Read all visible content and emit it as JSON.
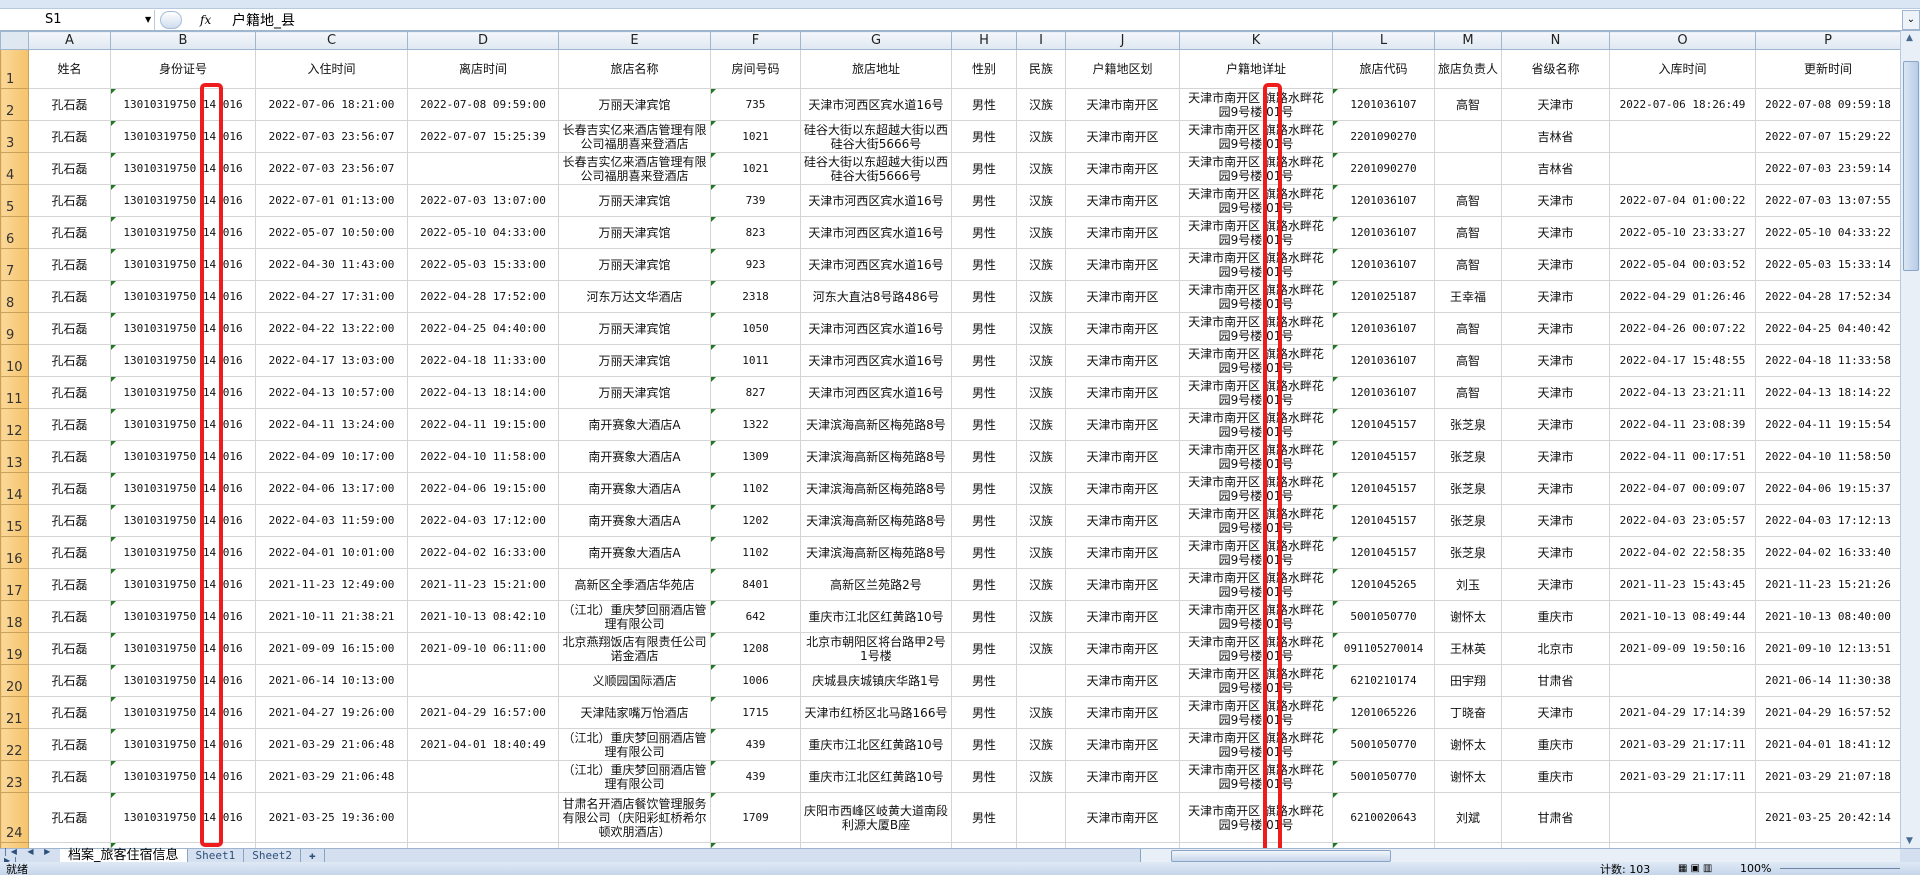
{
  "formula_bar": {
    "name_box": "S1",
    "fx_label": "fx",
    "content": "户籍地_县"
  },
  "columns": [
    "A",
    "B",
    "C",
    "D",
    "E",
    "F",
    "G",
    "H",
    "I",
    "J",
    "K",
    "L",
    "M",
    "N",
    "O",
    "P"
  ],
  "headers": [
    "姓名",
    "身份证号",
    "入住时间",
    "离店时间",
    "旅店名称",
    "房间号码",
    "旅店地址",
    "性别",
    "民族",
    "户籍地区划",
    "户籍地详址",
    "旅店代码",
    "旅店负责人",
    "省级名称",
    "入库时间",
    "更新时间"
  ],
  "rows": [
    [
      "孔石磊",
      "13010319750 14 016",
      "2022-07-06 18:21:00",
      "2022-07-08 09:59:00",
      "万丽天津宾馆",
      "735",
      "天津市河西区宾水道16号",
      "男性",
      "汉族",
      "天津市南开区",
      "天津市南开区 旗路水畔花园9号楼 01号",
      "1201036107",
      "高智",
      "天津市",
      "2022-07-06 18:26:49",
      "2022-07-08 09:59:18"
    ],
    [
      "孔石磊",
      "13010319750 14 016",
      "2022-07-03 23:56:07",
      "2022-07-07 15:25:39",
      "长春吉实亿来酒店管理有限公司福朋喜来登酒店",
      "1021",
      "硅谷大街以东超越大街以西硅谷大街5666号",
      "男性",
      "汉族",
      "天津市南开区",
      "天津市南开区 旗路水畔花园9号楼 01号",
      "2201090270",
      "",
      "吉林省",
      "",
      "2022-07-07 15:29:22"
    ],
    [
      "孔石磊",
      "13010319750 14 016",
      "2022-07-03 23:56:07",
      "",
      "长春吉实亿来酒店管理有限公司福朋喜来登酒店",
      "1021",
      "硅谷大街以东超越大街以西硅谷大街5666号",
      "男性",
      "汉族",
      "天津市南开区",
      "天津市南开区 旗路水畔花园9号楼 01号",
      "2201090270",
      "",
      "吉林省",
      "",
      "2022-07-03 23:59:14"
    ],
    [
      "孔石磊",
      "13010319750 14 016",
      "2022-07-01 01:13:00",
      "2022-07-03 13:07:00",
      "万丽天津宾馆",
      "739",
      "天津市河西区宾水道16号",
      "男性",
      "汉族",
      "天津市南开区",
      "天津市南开区 旗路水畔花园9号楼 01号",
      "1201036107",
      "高智",
      "天津市",
      "2022-07-04 01:00:22",
      "2022-07-03 13:07:55"
    ],
    [
      "孔石磊",
      "13010319750 14 016",
      "2022-05-07 10:50:00",
      "2022-05-10 04:33:00",
      "万丽天津宾馆",
      "823",
      "天津市河西区宾水道16号",
      "男性",
      "汉族",
      "天津市南开区",
      "天津市南开区 旗路水畔花园9号楼 01号",
      "1201036107",
      "高智",
      "天津市",
      "2022-05-10 23:33:27",
      "2022-05-10 04:33:22"
    ],
    [
      "孔石磊",
      "13010319750 14 016",
      "2022-04-30 11:43:00",
      "2022-05-03 15:33:00",
      "万丽天津宾馆",
      "923",
      "天津市河西区宾水道16号",
      "男性",
      "汉族",
      "天津市南开区",
      "天津市南开区 旗路水畔花园9号楼 01号",
      "1201036107",
      "高智",
      "天津市",
      "2022-05-04 00:03:52",
      "2022-05-03 15:33:14"
    ],
    [
      "孔石磊",
      "13010319750 14 016",
      "2022-04-27 17:31:00",
      "2022-04-28 17:52:00",
      "河东万达文华酒店",
      "2318",
      "河东大直沽8号路486号",
      "男性",
      "汉族",
      "天津市南开区",
      "天津市南开区 旗路水畔花园9号楼 01号",
      "1201025187",
      "王幸福",
      "天津市",
      "2022-04-29 01:26:46",
      "2022-04-28 17:52:34"
    ],
    [
      "孔石磊",
      "13010319750 14 016",
      "2022-04-22 13:22:00",
      "2022-04-25 04:40:00",
      "万丽天津宾馆",
      "1050",
      "天津市河西区宾水道16号",
      "男性",
      "汉族",
      "天津市南开区",
      "天津市南开区 旗路水畔花园9号楼 01号",
      "1201036107",
      "高智",
      "天津市",
      "2022-04-26 00:07:22",
      "2022-04-25 04:40:42"
    ],
    [
      "孔石磊",
      "13010319750 14 016",
      "2022-04-17 13:03:00",
      "2022-04-18 11:33:00",
      "万丽天津宾馆",
      "1011",
      "天津市河西区宾水道16号",
      "男性",
      "汉族",
      "天津市南开区",
      "天津市南开区 旗路水畔花园9号楼 01号",
      "1201036107",
      "高智",
      "天津市",
      "2022-04-17 15:48:55",
      "2022-04-18 11:33:58"
    ],
    [
      "孔石磊",
      "13010319750 14 016",
      "2022-04-13 10:57:00",
      "2022-04-13 18:14:00",
      "万丽天津宾馆",
      "827",
      "天津市河西区宾水道16号",
      "男性",
      "汉族",
      "天津市南开区",
      "天津市南开区 旗路水畔花园9号楼 01号",
      "1201036107",
      "高智",
      "天津市",
      "2022-04-13 23:21:11",
      "2022-04-13 18:14:22"
    ],
    [
      "孔石磊",
      "13010319750 14 016",
      "2022-04-11 13:24:00",
      "2022-04-11 19:15:00",
      "南开赛象大酒店A",
      "1322",
      "天津滨海高新区梅苑路8号",
      "男性",
      "汉族",
      "天津市南开区",
      "天津市南开区 旗路水畔花园9号楼 01号",
      "1201045157",
      "张芝泉",
      "天津市",
      "2022-04-11 23:08:39",
      "2022-04-11 19:15:54"
    ],
    [
      "孔石磊",
      "13010319750 14 016",
      "2022-04-09 10:17:00",
      "2022-04-10 11:58:00",
      "南开赛象大酒店A",
      "1309",
      "天津滨海高新区梅苑路8号",
      "男性",
      "汉族",
      "天津市南开区",
      "天津市南开区 旗路水畔花园9号楼 01号",
      "1201045157",
      "张芝泉",
      "天津市",
      "2022-04-11 00:17:51",
      "2022-04-10 11:58:50"
    ],
    [
      "孔石磊",
      "13010319750 14 016",
      "2022-04-06 13:17:00",
      "2022-04-06 19:15:00",
      "南开赛象大酒店A",
      "1102",
      "天津滨海高新区梅苑路8号",
      "男性",
      "汉族",
      "天津市南开区",
      "天津市南开区 旗路水畔花园9号楼 01号",
      "1201045157",
      "张芝泉",
      "天津市",
      "2022-04-07 00:09:07",
      "2022-04-06 19:15:37"
    ],
    [
      "孔石磊",
      "13010319750 14 016",
      "2022-04-03 11:59:00",
      "2022-04-03 17:12:00",
      "南开赛象大酒店A",
      "1202",
      "天津滨海高新区梅苑路8号",
      "男性",
      "汉族",
      "天津市南开区",
      "天津市南开区 旗路水畔花园9号楼 01号",
      "1201045157",
      "张芝泉",
      "天津市",
      "2022-04-03 23:05:57",
      "2022-04-03 17:12:13"
    ],
    [
      "孔石磊",
      "13010319750 14 016",
      "2022-04-01 10:01:00",
      "2022-04-02 16:33:00",
      "南开赛象大酒店A",
      "1102",
      "天津滨海高新区梅苑路8号",
      "男性",
      "汉族",
      "天津市南开区",
      "天津市南开区 旗路水畔花园9号楼 01号",
      "1201045157",
      "张芝泉",
      "天津市",
      "2022-04-02 22:58:35",
      "2022-04-02 16:33:40"
    ],
    [
      "孔石磊",
      "13010319750 14 016",
      "2021-11-23 12:49:00",
      "2021-11-23 15:21:00",
      "高新区全季酒店华苑店",
      "8401",
      "高新区兰苑路2号",
      "男性",
      "汉族",
      "天津市南开区",
      "天津市南开区 旗路水畔花园9号楼 01号",
      "1201045265",
      "刘玉",
      "天津市",
      "2021-11-23 15:43:45",
      "2021-11-23 15:21:26"
    ],
    [
      "孔石磊",
      "13010319750 14 016",
      "2021-10-11 21:38:21",
      "2021-10-13 08:42:10",
      "（江北）重庆梦回丽酒店管理有限公司",
      "642",
      "重庆市江北区红黄路10号",
      "男性",
      "汉族",
      "天津市南开区",
      "天津市南开区 旗路水畔花园9号楼 01号",
      "5001050770",
      "谢怀太",
      "重庆市",
      "2021-10-13 08:49:44",
      "2021-10-13 08:40:00"
    ],
    [
      "孔石磊",
      "13010319750 14 016",
      "2021-09-09 16:15:00",
      "2021-09-10 06:11:00",
      "北京燕翔饭店有限责任公司诺金酒店",
      "1208",
      "北京市朝阳区将台路甲2号1号楼",
      "男性",
      "汉族",
      "天津市南开区",
      "天津市南开区 旗路水畔花园9号楼 01号",
      "091105270014",
      "王林英",
      "北京市",
      "2021-09-09 19:50:16",
      "2021-09-10 12:13:51"
    ],
    [
      "孔石磊",
      "13010319750 14 016",
      "2021-06-14 10:13:00",
      "",
      "义顺园国际酒店",
      "1006",
      "庆城县庆城镇庆华路1号",
      "男性",
      "",
      "天津市南开区",
      "天津市南开区 旗路水畔花园9号楼 01号",
      "6210210174",
      "田宇翔",
      "甘肃省",
      "",
      "2021-06-14 11:30:38"
    ],
    [
      "孔石磊",
      "13010319750 14 016",
      "2021-04-27 19:26:00",
      "2021-04-29 16:57:00",
      "天津陆家嘴万怡酒店",
      "1715",
      "天津市红桥区北马路166号",
      "男性",
      "汉族",
      "天津市南开区",
      "天津市南开区 旗路水畔花园9号楼 01号",
      "1201065226",
      "丁晓奋",
      "天津市",
      "2021-04-29 17:14:39",
      "2021-04-29 16:57:52"
    ],
    [
      "孔石磊",
      "13010319750 14 016",
      "2021-03-29 21:06:48",
      "2021-04-01 18:40:49",
      "（江北）重庆梦回丽酒店管理有限公司",
      "439",
      "重庆市江北区红黄路10号",
      "男性",
      "汉族",
      "天津市南开区",
      "天津市南开区 旗路水畔花园9号楼 01号",
      "5001050770",
      "谢怀太",
      "重庆市",
      "2021-03-29 21:17:11",
      "2021-04-01 18:41:12"
    ],
    [
      "孔石磊",
      "13010319750 14 016",
      "2021-03-29 21:06:48",
      "",
      "（江北）重庆梦回丽酒店管理有限公司",
      "439",
      "重庆市江北区红黄路10号",
      "男性",
      "汉族",
      "天津市南开区",
      "天津市南开区 旗路水畔花园9号楼 01号",
      "5001050770",
      "谢怀太",
      "重庆市",
      "2021-03-29 21:17:11",
      "2021-03-29 21:07:18"
    ],
    [
      "孔石磊",
      "13010319750 14 016",
      "2021-03-25 19:36:00",
      "",
      "甘肃名开酒店餐饮管理服务有限公司（庆阳彩虹桥希尔顿欢朋酒店）",
      "1709",
      "庆阳市西峰区岐黄大道南段利源大厦B座",
      "男性",
      "",
      "天津市南开区",
      "天津市南开区 旗路水畔花园9号楼 01号",
      "6210020643",
      "刘斌",
      "甘肃省",
      "",
      "2021-03-25 20:42:14"
    ],
    [
      "",
      "",
      "",
      "",
      "",
      "",
      "",
      "",
      "",
      "",
      "天津市南开区 旗路水畔",
      "",
      "",
      "",
      "",
      ""
    ]
  ],
  "sheet_tabs": [
    {
      "label": "档案_旅客住宿信息",
      "active": true
    },
    {
      "label": "Sheet1"
    },
    {
      "label": "Sheet2"
    }
  ],
  "status_bar": {
    "ready": "就绪",
    "count": "计数: 103",
    "zoom": "100%"
  },
  "colors": {
    "highlight_box": "#ee1c1c",
    "row_header": "#f5c36a",
    "number_as_text_marker": "#1e7a1e"
  }
}
